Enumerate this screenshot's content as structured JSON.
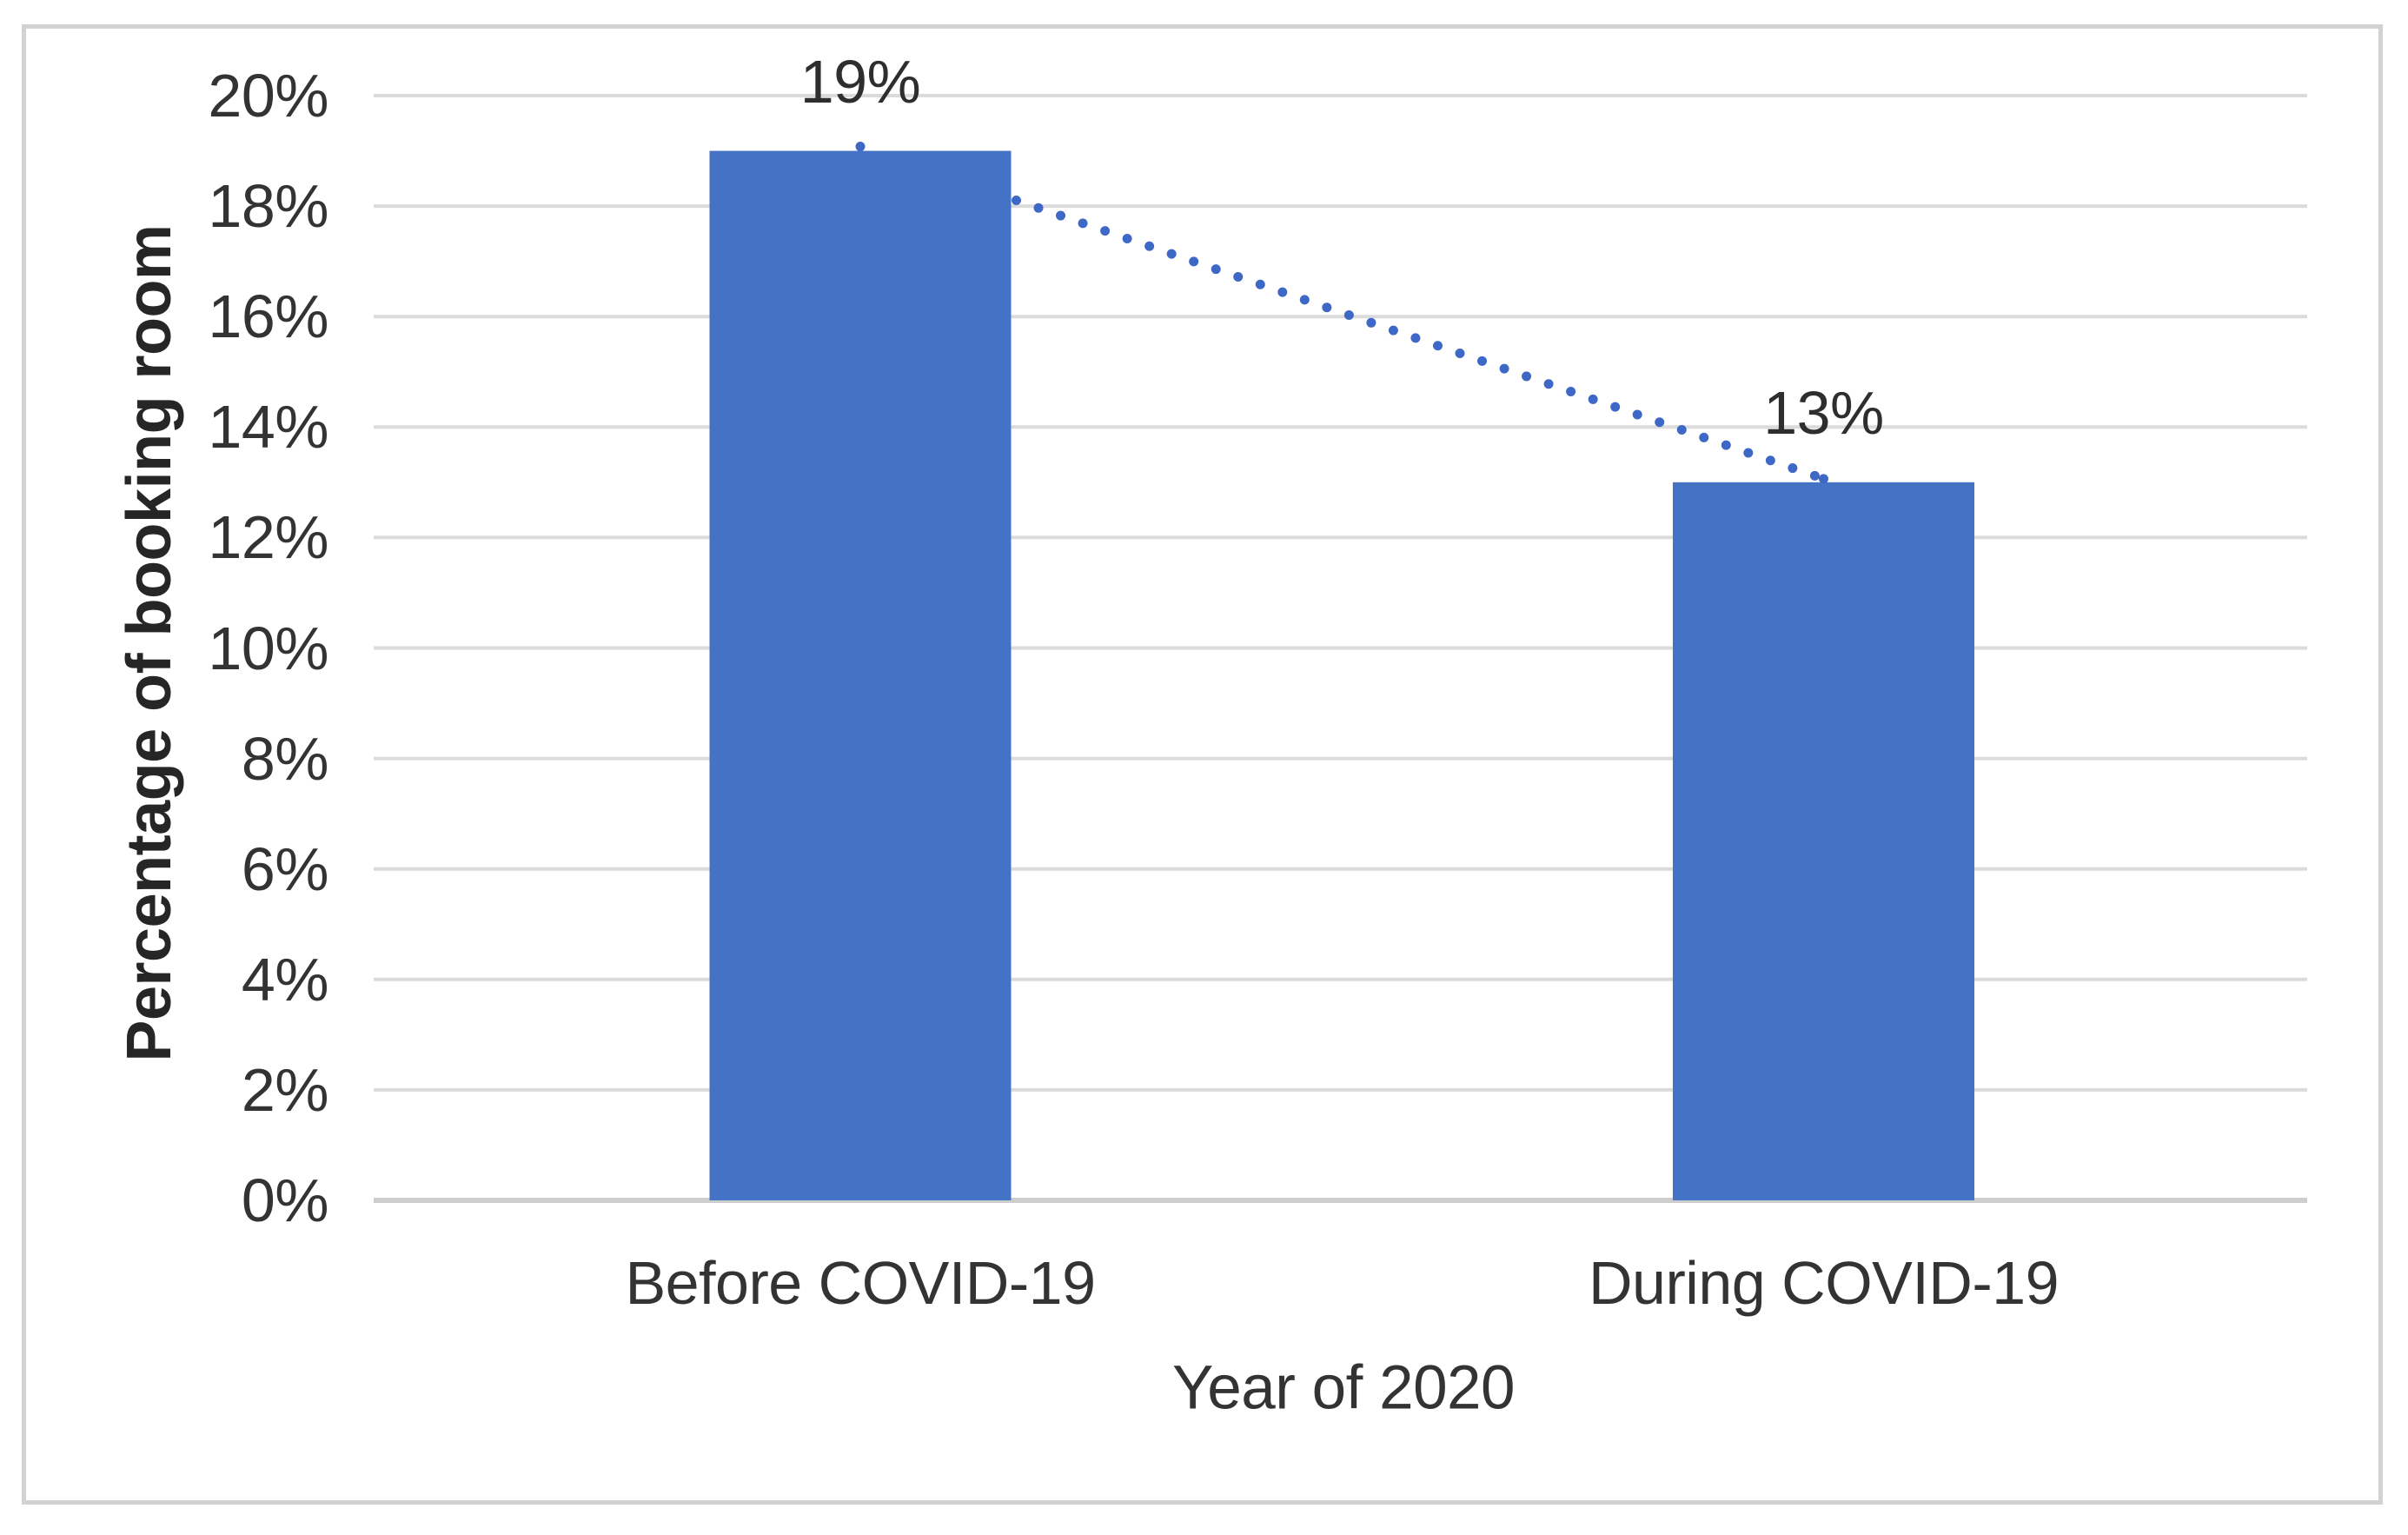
{
  "chart_data": {
    "type": "bar",
    "title": "",
    "categories": [
      "Before COVID-19",
      "During COVID-19"
    ],
    "values": [
      19,
      13
    ],
    "data_labels": [
      "19%",
      "13%"
    ],
    "xlabel": "Year of 2020",
    "ylabel": "Percentage of booking room",
    "ylim": [
      0,
      20
    ],
    "ytick_step": 2,
    "ytick_labels": [
      "0%",
      "2%",
      "4%",
      "6%",
      "8%",
      "10%",
      "12%",
      "14%",
      "16%",
      "18%",
      "20%"
    ],
    "grid": true,
    "legend": "none",
    "trendline": {
      "type": "linear",
      "style": "dotted",
      "from_value_pct": 19,
      "to_value_pct": 13
    },
    "colors": {
      "bar": "#4472C4",
      "trendline": "#3E68C6",
      "gridline": "#DBDBDB",
      "axis_line": "#CDCDCD",
      "frame_border": "#D2D2D2",
      "text": "#333333",
      "background": "#FFFFFF"
    }
  }
}
